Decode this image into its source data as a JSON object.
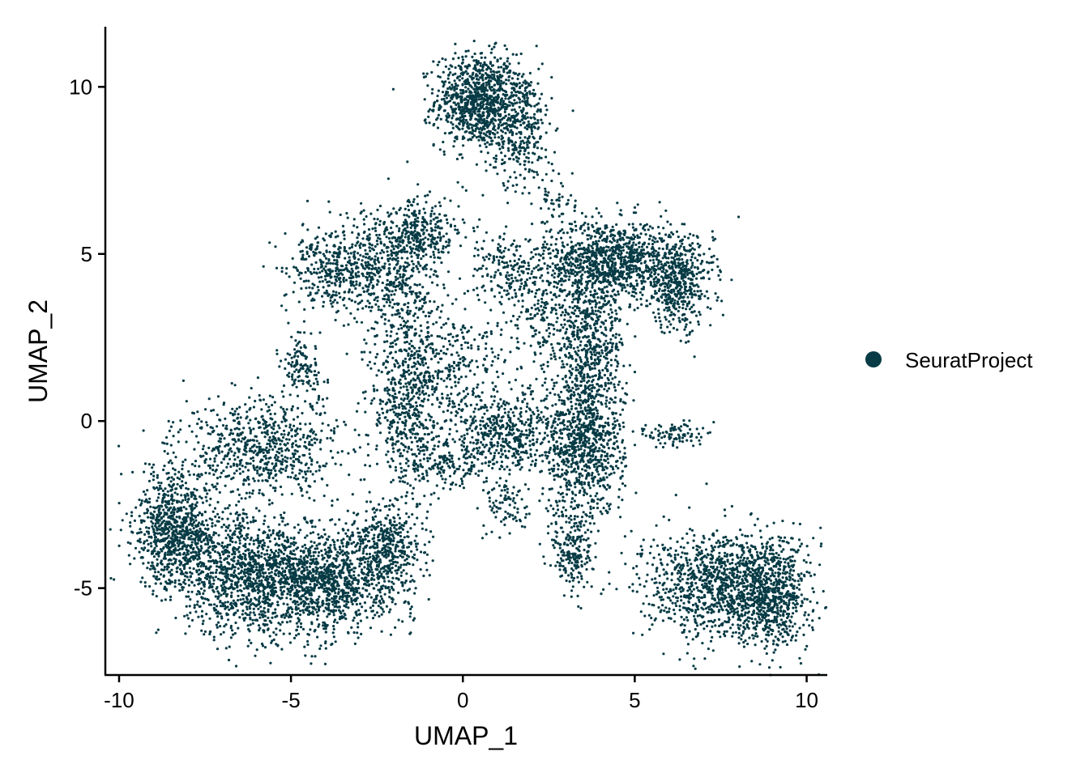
{
  "chart_data": {
    "type": "scatter",
    "title": "",
    "xlabel": "UMAP_1",
    "ylabel": "UMAP_2",
    "xlim": [
      -10.4,
      10.6
    ],
    "ylim": [
      -7.6,
      11.8
    ],
    "x_ticks": [
      -10,
      -5,
      0,
      5,
      10
    ],
    "x_tick_labels": [
      "-10",
      "-5",
      "0",
      "5",
      "10"
    ],
    "y_ticks": [
      -5,
      0,
      5,
      10
    ],
    "y_tick_labels": [
      "-5",
      "0",
      "5",
      "10"
    ],
    "grid": false,
    "legend_position": "right",
    "series": [
      {
        "name": "SeuratProject",
        "color": "#073b45",
        "clusters": [
          {
            "cx": 0.4,
            "cy": 9.6,
            "sx": 0.6,
            "sy": 0.7,
            "n": 900
          },
          {
            "cx": 1.6,
            "cy": 8.9,
            "sx": 0.5,
            "sy": 0.9,
            "n": 400
          },
          {
            "cx": 2.6,
            "cy": 6.6,
            "sx": 0.3,
            "sy": 0.6,
            "n": 60
          },
          {
            "cx": 4.4,
            "cy": 4.8,
            "sx": 1.0,
            "sy": 0.6,
            "n": 1000
          },
          {
            "cx": 6.3,
            "cy": 4.1,
            "sx": 0.5,
            "sy": 0.7,
            "n": 450
          },
          {
            "cx": 3.7,
            "cy": 2.2,
            "sx": 0.5,
            "sy": 1.4,
            "n": 700
          },
          {
            "cx": 3.5,
            "cy": -0.8,
            "sx": 0.6,
            "sy": 1.0,
            "n": 800
          },
          {
            "cx": 1.2,
            "cy": -0.4,
            "sx": 0.7,
            "sy": 0.6,
            "n": 450
          },
          {
            "cx": 1.3,
            "cy": -2.5,
            "sx": 0.3,
            "sy": 0.5,
            "n": 80
          },
          {
            "cx": 3.2,
            "cy": -3.9,
            "sx": 0.3,
            "sy": 0.7,
            "n": 220
          },
          {
            "cx": 6.2,
            "cy": -0.4,
            "sx": 0.4,
            "sy": 0.2,
            "n": 90
          },
          {
            "cx": 7.6,
            "cy": -4.9,
            "sx": 1.2,
            "sy": 0.8,
            "n": 1200
          },
          {
            "cx": 9.0,
            "cy": -5.3,
            "sx": 0.5,
            "sy": 0.8,
            "n": 500
          },
          {
            "cx": -8.3,
            "cy": -3.3,
            "sx": 0.6,
            "sy": 0.9,
            "n": 900
          },
          {
            "cx": -6.3,
            "cy": -4.6,
            "sx": 0.9,
            "sy": 0.9,
            "n": 1000
          },
          {
            "cx": -4.0,
            "cy": -4.8,
            "sx": 1.0,
            "sy": 0.8,
            "n": 1200
          },
          {
            "cx": -2.2,
            "cy": -3.8,
            "sx": 0.5,
            "sy": 0.7,
            "n": 400
          },
          {
            "cx": -5.8,
            "cy": -0.8,
            "sx": 1.2,
            "sy": 0.7,
            "n": 700
          },
          {
            "cx": -4.7,
            "cy": 1.6,
            "sx": 0.3,
            "sy": 0.5,
            "n": 130
          },
          {
            "cx": -3.8,
            "cy": 4.6,
            "sx": 0.7,
            "sy": 0.6,
            "n": 350
          },
          {
            "cx": -2.1,
            "cy": 4.5,
            "sx": 0.7,
            "sy": 1.0,
            "n": 550
          },
          {
            "cx": -1.2,
            "cy": 5.6,
            "sx": 0.5,
            "sy": 0.5,
            "n": 250
          },
          {
            "cx": -1.6,
            "cy": 0.5,
            "sx": 0.5,
            "sy": 1.5,
            "n": 600
          },
          {
            "cx": -0.2,
            "cy": 1.5,
            "sx": 0.8,
            "sy": 1.0,
            "n": 300
          },
          {
            "cx": 1.3,
            "cy": 4.5,
            "sx": 0.6,
            "sy": 0.6,
            "n": 200
          },
          {
            "cx": 2.5,
            "cy": 3.0,
            "sx": 0.6,
            "sy": 1.0,
            "n": 200
          },
          {
            "cx": -0.5,
            "cy": -1.2,
            "sx": 0.6,
            "sy": 0.4,
            "n": 150
          }
        ]
      }
    ]
  }
}
